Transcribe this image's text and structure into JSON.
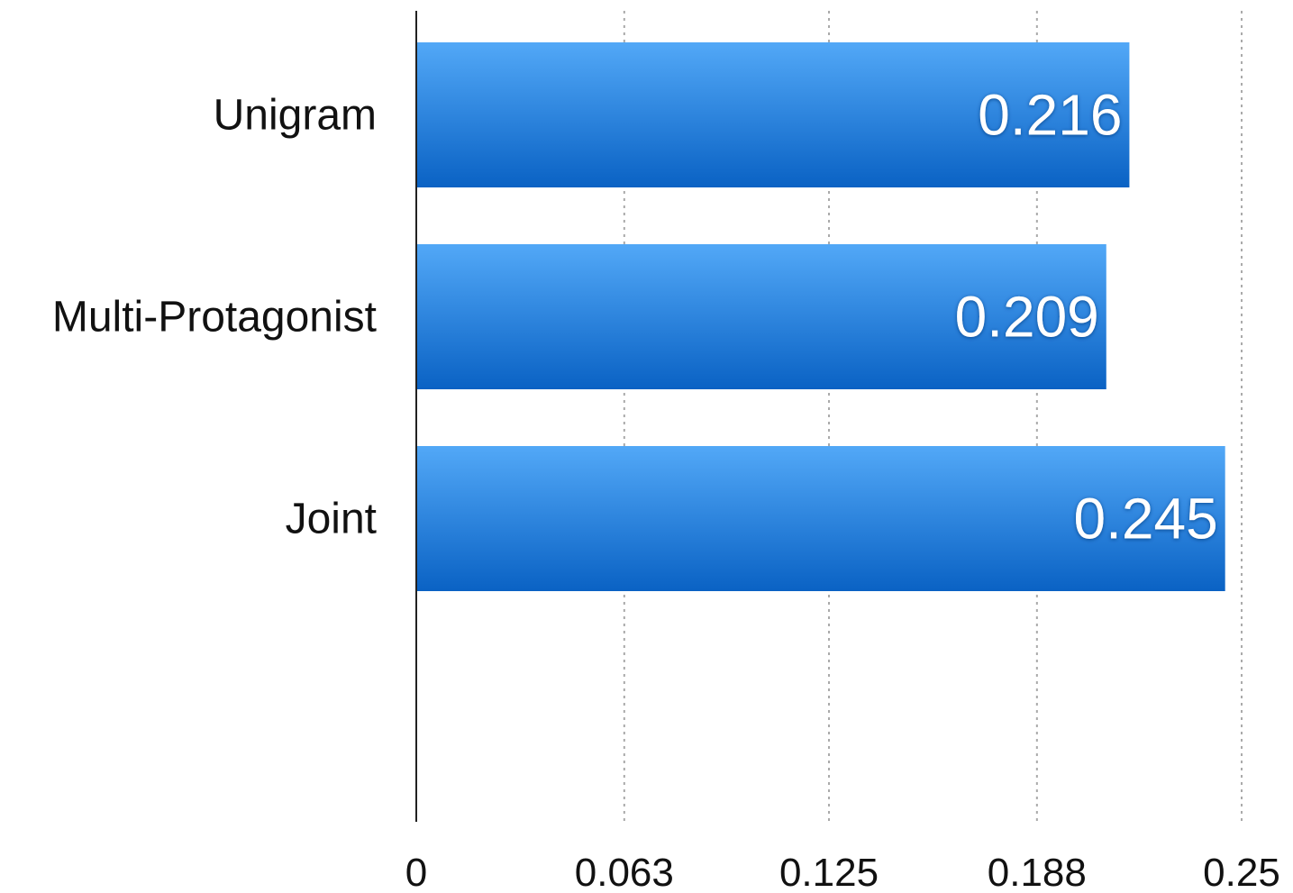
{
  "chart_data": {
    "type": "bar",
    "orientation": "horizontal",
    "categories": [
      "Unigram",
      "Multi-Protagonist",
      "Joint"
    ],
    "values": [
      0.216,
      0.209,
      0.245
    ],
    "value_labels": [
      "0.216",
      "0.209",
      "0.245"
    ],
    "xlim": [
      0,
      0.25
    ],
    "xticks": [
      0,
      0.063,
      0.125,
      0.188,
      0.25
    ],
    "xtick_labels": [
      "0",
      "0.063",
      "0.125",
      "0.188",
      "0.25"
    ],
    "grid": "vertical dotted",
    "legend": "none",
    "colors": {
      "bar_top": "#52a8f7",
      "bar_bottom": "#0a62c4",
      "grid": "#aaaaaa",
      "axis": "#222222"
    }
  }
}
